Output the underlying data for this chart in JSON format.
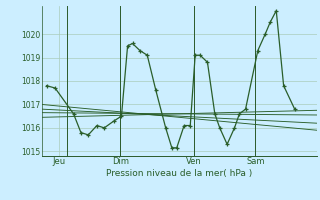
{
  "background_color": "#cceeff",
  "grid_color": "#aaccbb",
  "line_color": "#2a5e2a",
  "ylim": [
    1014.8,
    1021.2
  ],
  "yticks": [
    1015,
    1016,
    1017,
    1018,
    1019,
    1020
  ],
  "xlabel": "Pression niveau de la mer( hPa )",
  "xtick_labels": [
    "Jeu",
    "Dim",
    "Ven",
    "Sam"
  ],
  "xtick_positions": [
    0.5,
    3.0,
    6.0,
    8.5
  ],
  "vline_positions": [
    0.85,
    3.0,
    6.0,
    8.5
  ],
  "xlim": [
    -0.2,
    11.0
  ],
  "series": [
    [
      0.0,
      1017.8
    ],
    [
      0.35,
      1017.7
    ],
    [
      1.1,
      1016.6
    ],
    [
      1.4,
      1015.8
    ],
    [
      1.7,
      1015.7
    ],
    [
      2.05,
      1016.1
    ],
    [
      2.35,
      1016.0
    ],
    [
      2.75,
      1016.3
    ],
    [
      3.05,
      1016.5
    ],
    [
      3.3,
      1019.5
    ],
    [
      3.5,
      1019.6
    ],
    [
      3.8,
      1019.3
    ],
    [
      4.1,
      1019.1
    ],
    [
      4.45,
      1017.6
    ],
    [
      4.85,
      1016.0
    ],
    [
      5.1,
      1015.15
    ],
    [
      5.3,
      1015.15
    ],
    [
      5.6,
      1016.1
    ],
    [
      5.85,
      1016.1
    ],
    [
      6.05,
      1019.1
    ],
    [
      6.25,
      1019.1
    ],
    [
      6.55,
      1018.8
    ],
    [
      6.85,
      1016.6
    ],
    [
      7.05,
      1016.0
    ],
    [
      7.35,
      1015.3
    ],
    [
      7.65,
      1016.0
    ],
    [
      7.85,
      1016.6
    ],
    [
      8.1,
      1016.8
    ],
    [
      8.6,
      1019.3
    ],
    [
      8.9,
      1020.0
    ],
    [
      9.1,
      1020.5
    ],
    [
      9.35,
      1021.0
    ],
    [
      9.65,
      1017.8
    ],
    [
      10.1,
      1016.8
    ]
  ],
  "trend_lines": [
    {
      "x0": -0.2,
      "x1": 11.0,
      "y0": 1016.65,
      "y1": 1016.55
    },
    {
      "x0": -0.2,
      "x1": 11.0,
      "y0": 1016.8,
      "y1": 1016.2
    },
    {
      "x0": -0.2,
      "x1": 11.0,
      "y0": 1017.0,
      "y1": 1015.9
    },
    {
      "x0": -0.2,
      "x1": 11.0,
      "y0": 1016.45,
      "y1": 1016.75
    }
  ]
}
